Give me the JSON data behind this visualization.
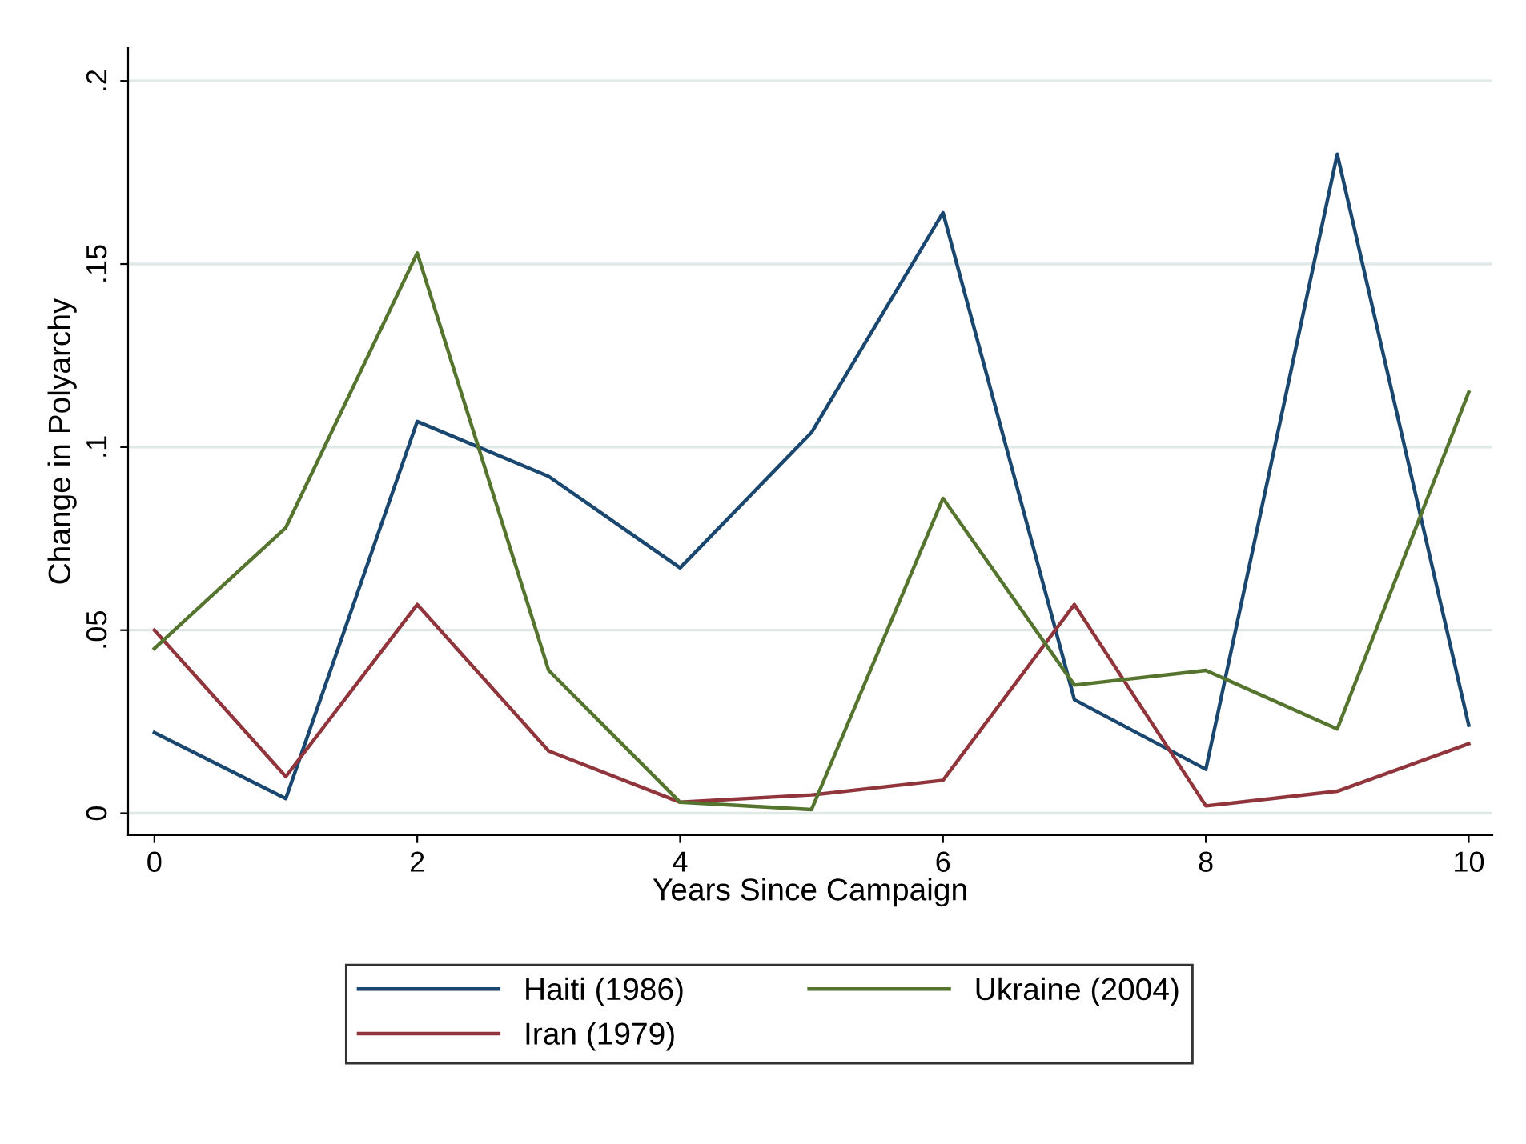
{
  "chart_data": {
    "type": "line",
    "xlabel": "Years Since Campaign",
    "ylabel": "Change in Polyarchy",
    "x": [
      0,
      1,
      2,
      3,
      4,
      5,
      6,
      7,
      8,
      9,
      10
    ],
    "series": [
      {
        "name": "Haiti (1986)",
        "color": "#1a476f",
        "values": [
          0.022,
          0.004,
          0.107,
          0.092,
          0.067,
          0.104,
          0.164,
          0.031,
          0.012,
          0.18,
          0.024
        ]
      },
      {
        "name": "Iran (1979)",
        "color": "#90353b",
        "values": [
          0.05,
          0.01,
          0.057,
          0.017,
          0.003,
          0.005,
          0.009,
          0.057,
          0.002,
          0.006,
          0.019
        ]
      },
      {
        "name": "Ukraine (2004)",
        "color": "#55752f",
        "values": [
          0.045,
          0.078,
          0.153,
          0.039,
          0.003,
          0.001,
          0.086,
          0.035,
          0.039,
          0.023,
          0.115
        ]
      }
    ],
    "xlim": [
      -0.2,
      10.18
    ],
    "ylim": [
      -0.006,
      0.209
    ],
    "xticks": [
      0,
      2,
      4,
      6,
      8,
      10
    ],
    "yticks": [
      {
        "value": 0,
        "label": "0"
      },
      {
        "value": 0.05,
        "label": ".05"
      },
      {
        "value": 0.1,
        "label": ".1"
      },
      {
        "value": 0.15,
        "label": ".15"
      },
      {
        "value": 0.2,
        "label": ".2"
      }
    ],
    "grid": "y",
    "legend": "bottom",
    "marker": "none",
    "line_style": "solid"
  }
}
